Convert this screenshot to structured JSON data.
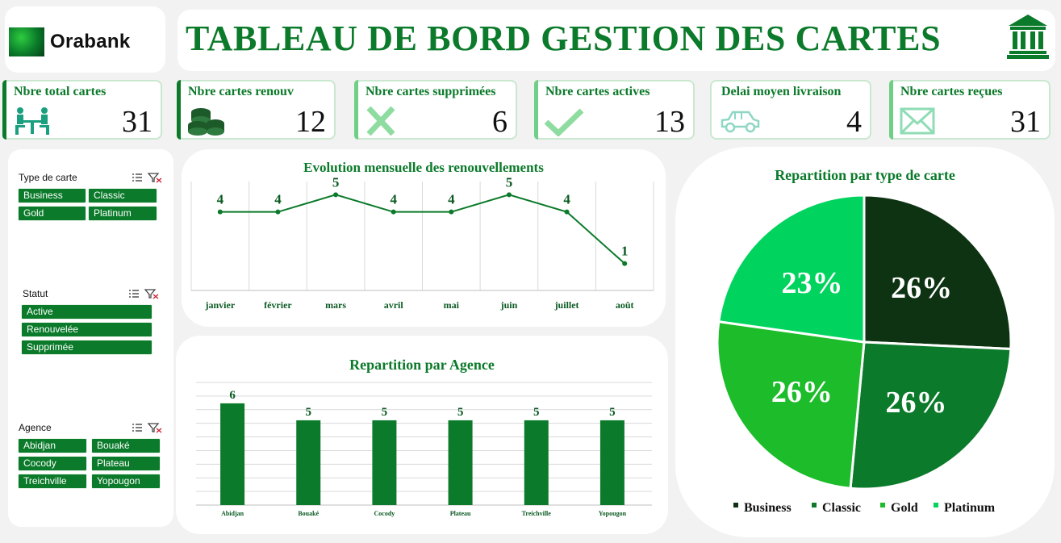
{
  "brand": {
    "name": "Orabank"
  },
  "header": {
    "title": "TABLEAU DE BORD GESTION DES CARTES",
    "icon": "bank-icon"
  },
  "kpis": [
    {
      "label": "Nbre total cartes",
      "value": "31",
      "icon": "meeting-people-icon"
    },
    {
      "label": "Nbre cartes renouv",
      "value": "12",
      "icon": "coins-icon"
    },
    {
      "label": "Nbre cartes supprimées",
      "value": "6",
      "icon": "cross-icon"
    },
    {
      "label": "Nbre cartes actives",
      "value": "13",
      "icon": "checkmark-icon"
    },
    {
      "label": "Delai moyen livraison",
      "value": "4",
      "icon": "car-icon"
    },
    {
      "label": "Nbre cartes reçues",
      "value": "31",
      "icon": "envelope-icon"
    }
  ],
  "slicers": [
    {
      "title": "Type de carte",
      "items": [
        "Business",
        "Classic",
        "Gold",
        "Platinum"
      ]
    },
    {
      "title": "Statut",
      "items": [
        "Active",
        "Renouvelée",
        "Supprimée"
      ]
    },
    {
      "title": "Agence",
      "items": [
        "Abidjan",
        "Bouaké",
        "Cocody",
        "Plateau",
        "Treichville",
        "Yopougon"
      ]
    }
  ],
  "colors": {
    "brand_green": "#0b7a2a",
    "kpi_border": "#c9e8cf",
    "background": "#f2f2f2"
  },
  "chart_data": [
    {
      "type": "line",
      "title": "Evolution  mensuelle des renouvellements",
      "categories": [
        "janvier",
        "février",
        "mars",
        "avril",
        "mai",
        "juin",
        "juillet",
        "août"
      ],
      "values": [
        4,
        4,
        5,
        4,
        4,
        5,
        4,
        1
      ],
      "color": "#0b7a2a",
      "grid": "vertical"
    },
    {
      "type": "bar",
      "title": "Repartition par Agence",
      "categories": [
        "Abidjan",
        "Bouaké",
        "Cocody",
        "Plateau",
        "Treichville",
        "Yopougon"
      ],
      "values": [
        6,
        5,
        5,
        5,
        5,
        5
      ],
      "color": "#0b7a2a",
      "grid": "horizontal"
    },
    {
      "type": "pie",
      "title": "Repartition par type de carte",
      "categories": [
        "Business",
        "Classic",
        "Gold",
        "Platinum"
      ],
      "values": [
        26,
        26,
        26,
        23
      ],
      "labels": [
        "26%",
        "26%",
        "26%",
        "23%"
      ],
      "colors": [
        "#0e3312",
        "#0b7a2a",
        "#1cbc2a",
        "#00d45e"
      ],
      "legend": "bottom"
    }
  ]
}
